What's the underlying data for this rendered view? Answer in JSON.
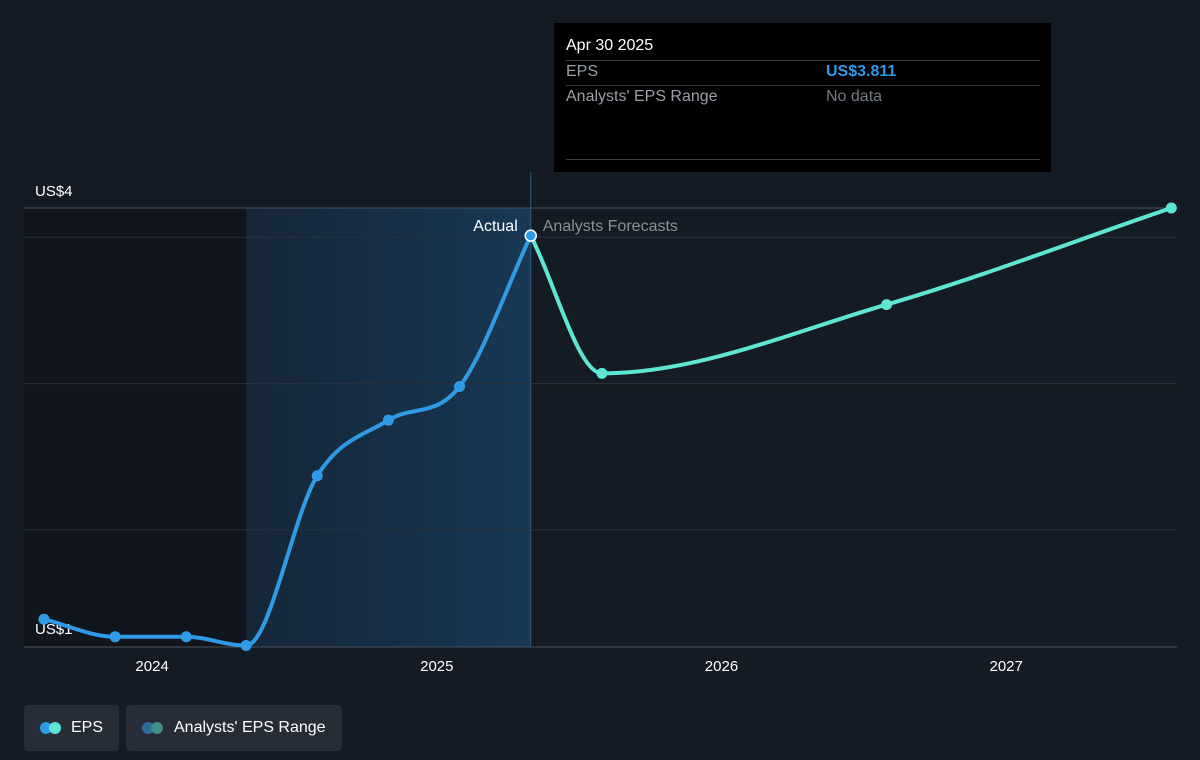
{
  "colors": {
    "actual": "#2f9be6",
    "forecast": "#5ee6d3",
    "range_dark": "#2f6b9b",
    "range_teal": "#3e8f8a"
  },
  "tooltip": {
    "date": "Apr 30 2025",
    "eps_label": "EPS",
    "eps_value": "US$3.811",
    "range_label": "Analysts' EPS Range",
    "range_value": "No data"
  },
  "legend": {
    "eps_label": "EPS",
    "range_label": "Analysts' EPS Range"
  },
  "chart_data": {
    "type": "line",
    "y_tick_labels": [
      {
        "value": 4,
        "label": "US$4"
      },
      {
        "value": 1,
        "label": "US$1"
      }
    ],
    "x_tick_labels": [
      {
        "value": 2024.0,
        "label": "2024"
      },
      {
        "value": 2025.0,
        "label": "2025"
      },
      {
        "value": 2026.0,
        "label": "2026"
      },
      {
        "value": 2027.0,
        "label": "2027"
      }
    ],
    "xlim": [
      2023.55,
      2027.6
    ],
    "ylim": [
      1.0,
      4.0
    ],
    "gridlines_y": [
      4.0,
      3.8,
      2.8,
      1.8
    ],
    "section_labels": {
      "actual": "Actual",
      "forecast": "Analysts Forecasts"
    },
    "divider_x": 2025.33,
    "shaded_start_x": 2024.33,
    "series": [
      {
        "name": "EPS",
        "kind": "actual",
        "points": [
          {
            "x": 2023.62,
            "y": 1.19
          },
          {
            "x": 2023.87,
            "y": 1.07
          },
          {
            "x": 2024.12,
            "y": 1.07
          },
          {
            "x": 2024.33,
            "y": 1.01
          },
          {
            "x": 2024.58,
            "y": 2.17
          },
          {
            "x": 2024.83,
            "y": 2.55
          },
          {
            "x": 2025.08,
            "y": 2.78
          },
          {
            "x": 2025.33,
            "y": 3.811
          }
        ]
      },
      {
        "name": "EPS",
        "kind": "forecast",
        "points": [
          {
            "x": 2025.33,
            "y": 3.811
          },
          {
            "x": 2025.58,
            "y": 2.87
          },
          {
            "x": 2026.58,
            "y": 3.34
          },
          {
            "x": 2027.58,
            "y": 4.0
          }
        ]
      }
    ]
  }
}
